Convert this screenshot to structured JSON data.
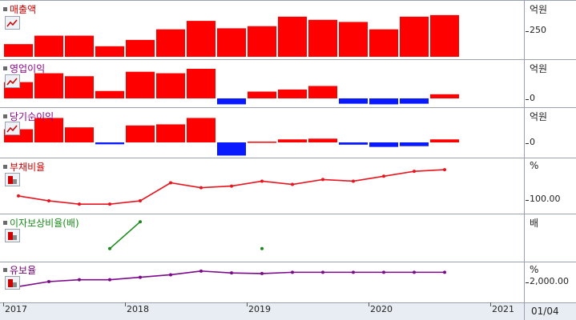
{
  "colors": {
    "pos": "#ff0000",
    "neg": "#0a1aff",
    "debt": "#e8141e",
    "icr": "#1a8a1a",
    "reserve": "#7a0a8a"
  },
  "panels": {
    "revenue": {
      "title": "매출액",
      "unit": "억원",
      "tick": "250",
      "color": "#cc0000"
    },
    "op_profit": {
      "title": "영업이익",
      "unit": "억원",
      "tick": "0",
      "color": "#8b008b"
    },
    "net_income": {
      "title": "당기순이익",
      "unit": "억원",
      "tick": "0",
      "color": "#8b008b"
    },
    "debt_ratio": {
      "title": "부채비율",
      "unit": "%",
      "tick": "100.00",
      "color": "#cc0000"
    },
    "icr": {
      "title": "이자보상비율(배)",
      "unit": "배",
      "tick": "",
      "color": "#1a8a1a"
    },
    "reserve_ratio": {
      "title": "유보율",
      "unit": "%",
      "tick": "2,000.00",
      "color": "#6a006a"
    }
  },
  "xaxis": {
    "labels": [
      "2017",
      "2018",
      "2019",
      "2020",
      "2021"
    ],
    "end_label": "01/04"
  },
  "chart_data": [
    {
      "type": "bar",
      "title": "매출액",
      "ylabel": "억원",
      "ylim": [
        0,
        400
      ],
      "values": [
        120,
        200,
        200,
        100,
        160,
        260,
        340,
        270,
        290,
        380,
        350,
        330,
        260,
        380,
        395
      ]
    },
    {
      "type": "bar",
      "title": "영업이익",
      "ylabel": "억원",
      "ylim": [
        -20,
        100
      ],
      "values": [
        55,
        85,
        75,
        25,
        90,
        85,
        100,
        -20,
        23,
        30,
        42,
        -18,
        -20,
        -18,
        14
      ]
    },
    {
      "type": "bar",
      "title": "당기순이익",
      "ylabel": "억원",
      "ylim": [
        -40,
        80
      ],
      "values": [
        35,
        65,
        40,
        -5,
        45,
        48,
        65,
        -35,
        2,
        8,
        10,
        -6,
        -12,
        -10,
        8
      ]
    },
    {
      "type": "line",
      "title": "부채비율",
      "ylabel": "%",
      "ylim": [
        95,
        135
      ],
      "values": [
        102,
        99,
        97,
        97,
        99,
        110,
        107,
        108,
        111,
        109,
        112,
        111,
        114,
        117,
        118
      ]
    },
    {
      "type": "line",
      "title": "이자보상비율(배)",
      "ylabel": "배",
      "values": [
        null,
        null,
        null,
        2,
        8,
        null,
        null,
        null,
        2,
        null,
        null,
        null,
        null,
        null,
        null
      ]
    },
    {
      "type": "line",
      "title": "유보율",
      "ylabel": "%",
      "ylim": [
        1950,
        2200
      ],
      "values": [
        1960,
        2000,
        2015,
        2015,
        2035,
        2055,
        2085,
        2070,
        2065,
        2075,
        2075,
        2075,
        2075,
        2075,
        2075
      ]
    }
  ]
}
